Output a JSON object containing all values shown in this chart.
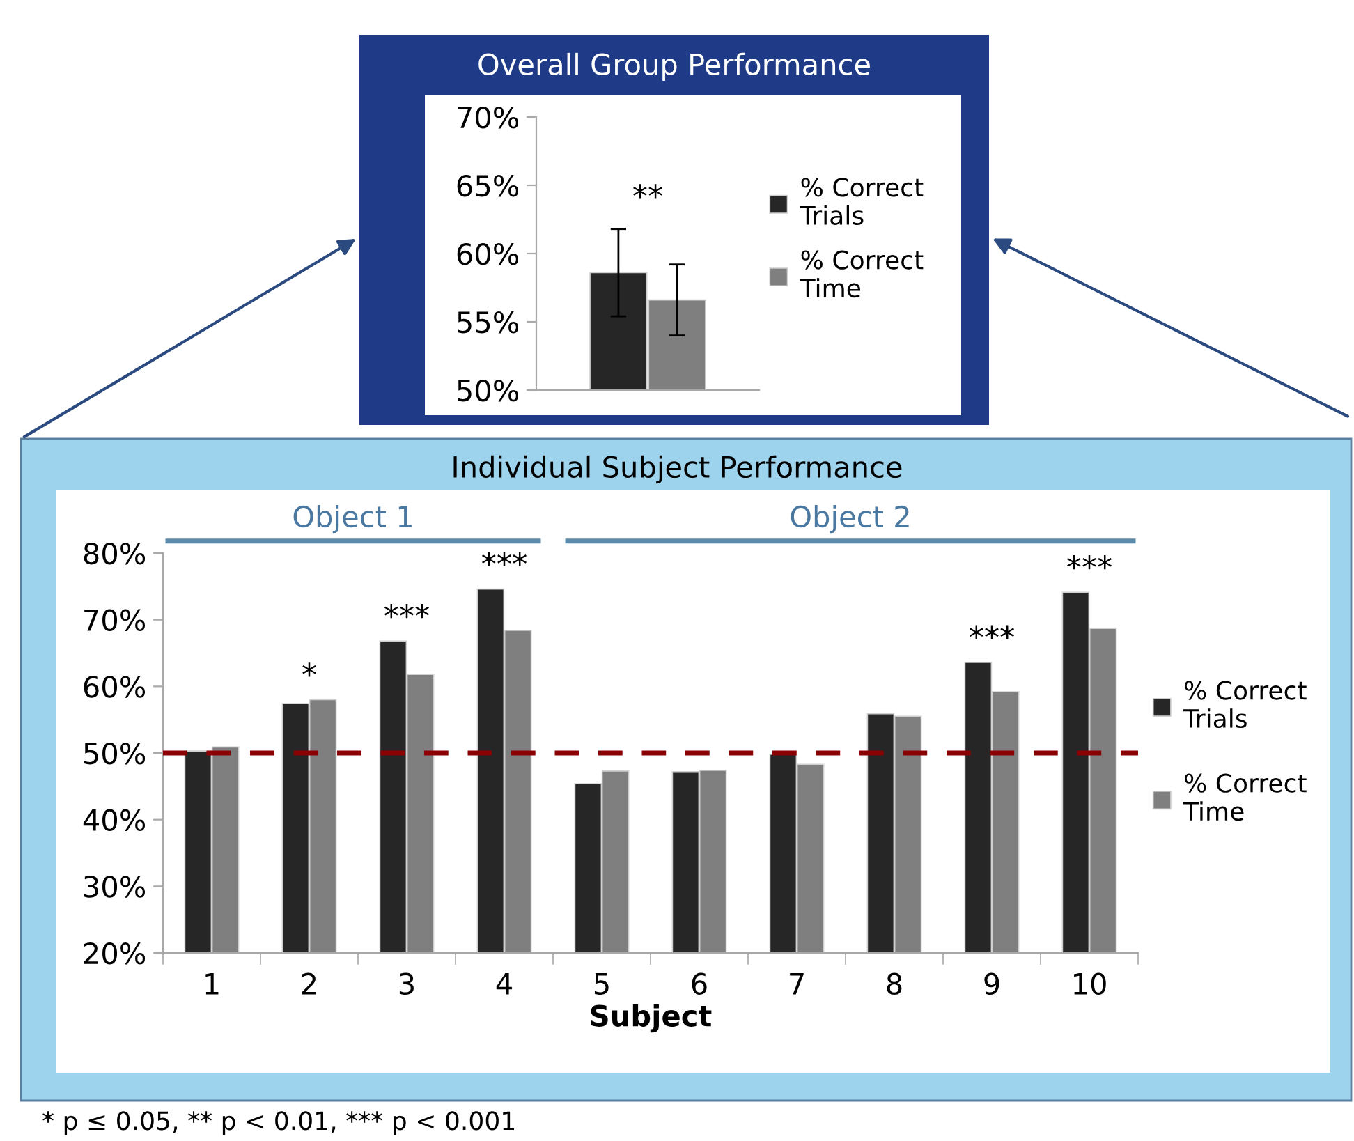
{
  "chart_data": [
    {
      "type": "bar",
      "title": "Overall Group Performance",
      "categories": [
        null
      ],
      "series": [
        {
          "name": "% Correct\nTrials",
          "color": "#262626",
          "values": [
            58.6
          ],
          "errors": [
            3.2
          ]
        },
        {
          "name": "% Correct\nTime",
          "color": "#7f7f7f",
          "values": [
            56.6
          ],
          "errors": [
            2.6
          ]
        }
      ],
      "ylim": [
        50,
        70
      ],
      "yticks": [
        {
          "value": 50,
          "label": "50%"
        },
        {
          "value": 55,
          "label": "55%"
        },
        {
          "value": 60,
          "label": "60%"
        },
        {
          "value": 65,
          "label": "65%"
        },
        {
          "value": 70,
          "label": "70%"
        }
      ],
      "annotations": [
        "**"
      ],
      "grid": false,
      "legend": "right"
    },
    {
      "type": "bar",
      "title": "Individual Subject Performance",
      "xlabel": "Subject",
      "categories": [
        "1",
        "2",
        "3",
        "4",
        "5",
        "6",
        "7",
        "8",
        "9",
        "10"
      ],
      "series": [
        {
          "name": "% Correct\nTrials",
          "color": "#262626",
          "values": [
            50.3,
            57.4,
            66.8,
            74.6,
            45.4,
            47.2,
            49.8,
            55.9,
            63.6,
            74.1
          ]
        },
        {
          "name": "% Correct\nTime",
          "color": "#7f7f7f",
          "values": [
            50.9,
            58.0,
            61.8,
            68.4,
            47.3,
            47.4,
            48.3,
            55.5,
            59.2,
            68.7
          ]
        }
      ],
      "ylim": [
        20,
        80
      ],
      "yticks": [
        {
          "value": 20,
          "label": "20%"
        },
        {
          "value": 30,
          "label": "30%"
        },
        {
          "value": 40,
          "label": "40%"
        },
        {
          "value": 50,
          "label": "50%"
        },
        {
          "value": 60,
          "label": "60%"
        },
        {
          "value": 70,
          "label": "70%"
        },
        {
          "value": 80,
          "label": "80%"
        }
      ],
      "ref_lines": [
        {
          "axis": "y",
          "value": 50,
          "color": "#8b0000",
          "line_style": "dashed"
        }
      ],
      "annotations": [
        {
          "text": "*",
          "x": "2",
          "y": 58.0
        },
        {
          "text": "***",
          "x": "3",
          "y": 66.8
        },
        {
          "text": "***",
          "x": "4",
          "y": 74.6
        },
        {
          "text": "***",
          "x": "9",
          "y": 63.6
        },
        {
          "text": "***",
          "x": "10",
          "y": 74.1
        },
        "Object 1",
        "Object 2",
        "* p ≤ 0.05, ** p < 0.01, *** p < 0.001"
      ],
      "grid": false,
      "legend": "right"
    }
  ]
}
